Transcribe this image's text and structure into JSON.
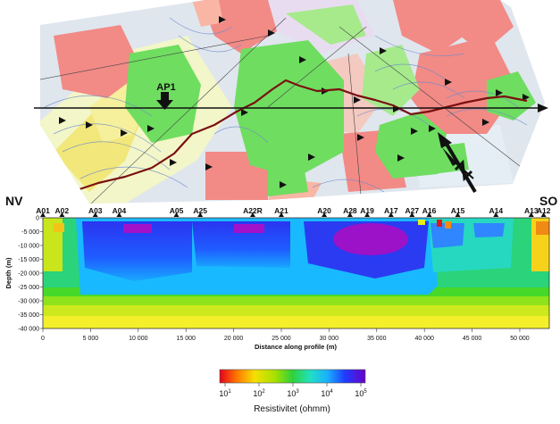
{
  "map": {
    "marker_label": "AP1"
  },
  "profile": {
    "left_label": "NV",
    "right_label": "SO",
    "stations": [
      {
        "label": "A01",
        "distance": 0
      },
      {
        "label": "A02",
        "distance": 2000
      },
      {
        "label": "A03",
        "distance": 5500
      },
      {
        "label": "A04",
        "distance": 8000
      },
      {
        "label": "A05",
        "distance": 14000
      },
      {
        "label": "A25",
        "distance": 16500
      },
      {
        "label": "A22R",
        "distance": 22000
      },
      {
        "label": "A21",
        "distance": 25000
      },
      {
        "label": "A20",
        "distance": 29500
      },
      {
        "label": "A28",
        "distance": 32200
      },
      {
        "label": "A19",
        "distance": 34000
      },
      {
        "label": "A17",
        "distance": 36500
      },
      {
        "label": "A27",
        "distance": 38700
      },
      {
        "label": "A16",
        "distance": 40500
      },
      {
        "label": "A15",
        "distance": 43500
      },
      {
        "label": "A14",
        "distance": 47500
      },
      {
        "label": "A13",
        "distance": 51200
      },
      {
        "label": "A12",
        "distance": 52500
      }
    ],
    "y_axis": {
      "label": "Depth (m)",
      "ticks": [
        "0",
        "-5 000",
        "-10 000",
        "-15 000",
        "-20 000",
        "-25 000",
        "-30 000",
        "-35 000",
        "-40 000"
      ]
    },
    "x_axis": {
      "label": "Distance along profile (m)",
      "ticks": [
        "0",
        "5 000",
        "10 000",
        "15 000",
        "20 000",
        "25 000",
        "30 000",
        "35 000",
        "40 000",
        "45 000",
        "50 000"
      ]
    }
  },
  "legend": {
    "title": "Resistivitet (ohmm)",
    "ticks": [
      {
        "base": "10",
        "exp": "1"
      },
      {
        "base": "10",
        "exp": "2"
      },
      {
        "base": "10",
        "exp": "3"
      },
      {
        "base": "10",
        "exp": "4"
      },
      {
        "base": "10",
        "exp": "5"
      }
    ]
  }
}
